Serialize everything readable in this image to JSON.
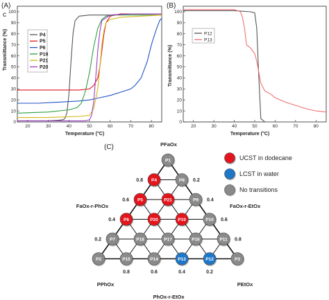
{
  "panels": {
    "a_label": "(A)",
    "a_sublabel": "c",
    "b_label": "(B)",
    "c_label": "(C)"
  },
  "chart_data": [
    {
      "type": "line",
      "panel": "A",
      "xlabel": "Temperature (°C)",
      "ylabel": "Transmittance (%)",
      "xlim": [
        15,
        85
      ],
      "ylim": [
        0,
        105
      ],
      "xticks": [
        20,
        30,
        40,
        50,
        60,
        70,
        80
      ],
      "yticks": [
        0,
        10,
        20,
        30,
        40,
        50,
        60,
        70,
        80,
        90,
        100
      ],
      "legend_position": "top-left",
      "series": [
        {
          "name": "P4",
          "color": "#555555",
          "x": [
            15,
            30,
            35,
            37,
            38,
            39,
            40,
            41,
            42,
            43,
            45,
            50,
            60,
            70,
            85
          ],
          "y": [
            1,
            1,
            1.5,
            2,
            3,
            8,
            25,
            55,
            80,
            92,
            96,
            97,
            97,
            98,
            98
          ]
        },
        {
          "name": "P5",
          "color": "#e0141e",
          "x": [
            15,
            30,
            45,
            50,
            52,
            54,
            55,
            56,
            57,
            58,
            60,
            65,
            75,
            85
          ],
          "y": [
            29,
            29,
            29,
            30,
            33,
            40,
            50,
            65,
            80,
            90,
            96,
            98,
            98,
            98
          ]
        },
        {
          "name": "P6",
          "color": "#2050c8",
          "x": [
            15,
            25,
            35,
            45,
            50,
            55,
            60,
            65,
            70,
            72,
            75,
            78,
            80,
            82,
            84,
            85
          ],
          "y": [
            17,
            17,
            18,
            19,
            20,
            22,
            24,
            27,
            30,
            33,
            40,
            55,
            70,
            82,
            92,
            94
          ]
        },
        {
          "name": "P19",
          "color": "#2e9e3e",
          "x": [
            15,
            30,
            40,
            44,
            46,
            48,
            50,
            52,
            54,
            56,
            58,
            62,
            70,
            85
          ],
          "y": [
            8,
            9,
            11,
            13,
            17,
            28,
            45,
            68,
            85,
            93,
            96,
            97,
            97,
            97
          ]
        },
        {
          "name": "P21",
          "color": "#d4b416",
          "x": [
            15,
            30,
            45,
            50,
            52,
            54,
            55,
            56,
            57,
            58,
            60,
            65,
            75,
            85
          ],
          "y": [
            4,
            4,
            5,
            6,
            12,
            30,
            50,
            70,
            83,
            90,
            93,
            95,
            96,
            97
          ]
        },
        {
          "name": "P20",
          "color": "#9b3fc4",
          "x": [
            15,
            30,
            45,
            48,
            50,
            51,
            52,
            53,
            54,
            55,
            56,
            60,
            70,
            85
          ],
          "y": [
            1,
            1,
            1,
            1,
            2,
            6,
            18,
            40,
            65,
            82,
            92,
            97,
            98,
            98
          ]
        }
      ]
    },
    {
      "type": "line",
      "panel": "B",
      "xlabel": "Temperature (°C)",
      "ylabel": "Transmittance (%)",
      "xlim": [
        15,
        85
      ],
      "ylim": [
        0,
        105
      ],
      "xticks": [
        20,
        30,
        40,
        50,
        60,
        70,
        80
      ],
      "yticks": [
        0,
        10,
        20,
        30,
        40,
        50,
        60,
        70,
        80,
        90,
        100
      ],
      "legend_position": "top-left",
      "series": [
        {
          "name": "P12",
          "color": "#555555",
          "x": [
            15,
            30,
            40,
            48,
            50,
            51,
            52,
            53,
            55,
            60,
            70,
            85
          ],
          "y": [
            101,
            101,
            101,
            100,
            99,
            85,
            40,
            3,
            0,
            0,
            0,
            0
          ]
        },
        {
          "name": "P13",
          "color": "#f07070",
          "x": [
            15,
            30,
            40,
            43,
            44,
            45,
            46,
            48,
            50,
            51,
            52,
            53,
            55,
            58,
            60,
            65,
            70,
            75,
            80,
            85
          ],
          "y": [
            102,
            102,
            102,
            100,
            95,
            85,
            70,
            67,
            62,
            55,
            45,
            35,
            28,
            25,
            22,
            18,
            15,
            12,
            10,
            9
          ]
        }
      ]
    }
  ],
  "ternary": {
    "nodes": [
      {
        "id": "P1",
        "row": 0,
        "col": 0,
        "type": "none"
      },
      {
        "id": "P4",
        "row": 1,
        "col": 0,
        "type": "ucst"
      },
      {
        "id": "P8",
        "row": 1,
        "col": 1,
        "type": "none"
      },
      {
        "id": "P5",
        "row": 2,
        "col": 0,
        "type": "ucst"
      },
      {
        "id": "P21",
        "row": 2,
        "col": 1,
        "type": "ucst"
      },
      {
        "id": "P9",
        "row": 2,
        "col": 2,
        "type": "none"
      },
      {
        "id": "P6",
        "row": 3,
        "col": 0,
        "type": "ucst"
      },
      {
        "id": "P20",
        "row": 3,
        "col": 1,
        "type": "ucst"
      },
      {
        "id": "P19",
        "row": 3,
        "col": 2,
        "type": "ucst"
      },
      {
        "id": "P10",
        "row": 3,
        "col": 3,
        "type": "none"
      },
      {
        "id": "P7",
        "row": 4,
        "col": 0,
        "type": "none"
      },
      {
        "id": "P18",
        "row": 4,
        "col": 1,
        "type": "none"
      },
      {
        "id": "P17",
        "row": 4,
        "col": 2,
        "type": "none"
      },
      {
        "id": "P16",
        "row": 4,
        "col": 3,
        "type": "none"
      },
      {
        "id": "P11",
        "row": 4,
        "col": 4,
        "type": "none"
      },
      {
        "id": "P2",
        "row": 5,
        "col": 0,
        "type": "none"
      },
      {
        "id": "P15",
        "row": 5,
        "col": 1,
        "type": "none"
      },
      {
        "id": "P14",
        "row": 5,
        "col": 2,
        "type": "none"
      },
      {
        "id": "P13",
        "row": 5,
        "col": 3,
        "type": "lcst"
      },
      {
        "id": "P12",
        "row": 5,
        "col": 4,
        "type": "lcst"
      },
      {
        "id": "P3",
        "row": 5,
        "col": 5,
        "type": "none"
      }
    ],
    "colors": {
      "ucst": "#e3141c",
      "lcst": "#1f77c8",
      "none": "#8a8a8a"
    },
    "left_fractions": [
      "0.8",
      "0.6",
      "0.4",
      "0.2"
    ],
    "right_fractions": [
      "0.2",
      "0.4",
      "0.6",
      "0.8"
    ],
    "bottom_fractions": [
      "0.8",
      "0.6",
      "0.4",
      "0.2"
    ],
    "corner_top": "PFaOx",
    "corner_left": "PPhOx",
    "corner_right": "PEtOx",
    "side_left": "FaOx-r-PhOx",
    "side_right": "FaOx-r-EtOx",
    "side_bottom": "PhOx-r-EtOx",
    "legend": [
      {
        "label": "UCST in dodecane",
        "type": "ucst"
      },
      {
        "label": "LCST in water",
        "type": "lcst"
      },
      {
        "label": "No transitions",
        "type": "none"
      }
    ]
  }
}
